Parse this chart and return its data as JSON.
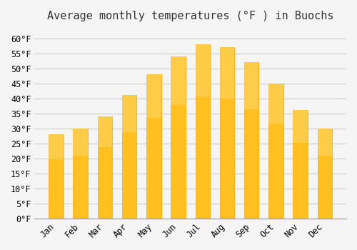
{
  "title": "Average monthly temperatures (°F ) in Buochs",
  "months": [
    "Jan",
    "Feb",
    "Mar",
    "Apr",
    "May",
    "Jun",
    "Jul",
    "Aug",
    "Sep",
    "Oct",
    "Nov",
    "Dec"
  ],
  "values": [
    28,
    30,
    34,
    41,
    48,
    54,
    58,
    57,
    52,
    45,
    36,
    30
  ],
  "bar_color": "#FFC020",
  "bar_edge_color": "#FFA500",
  "background_color": "#F5F5F5",
  "grid_color": "#CCCCCC",
  "ylim": [
    0,
    63
  ],
  "yticks": [
    0,
    5,
    10,
    15,
    20,
    25,
    30,
    35,
    40,
    45,
    50,
    55,
    60
  ],
  "title_fontsize": 11,
  "tick_fontsize": 8.5,
  "font_family": "monospace"
}
